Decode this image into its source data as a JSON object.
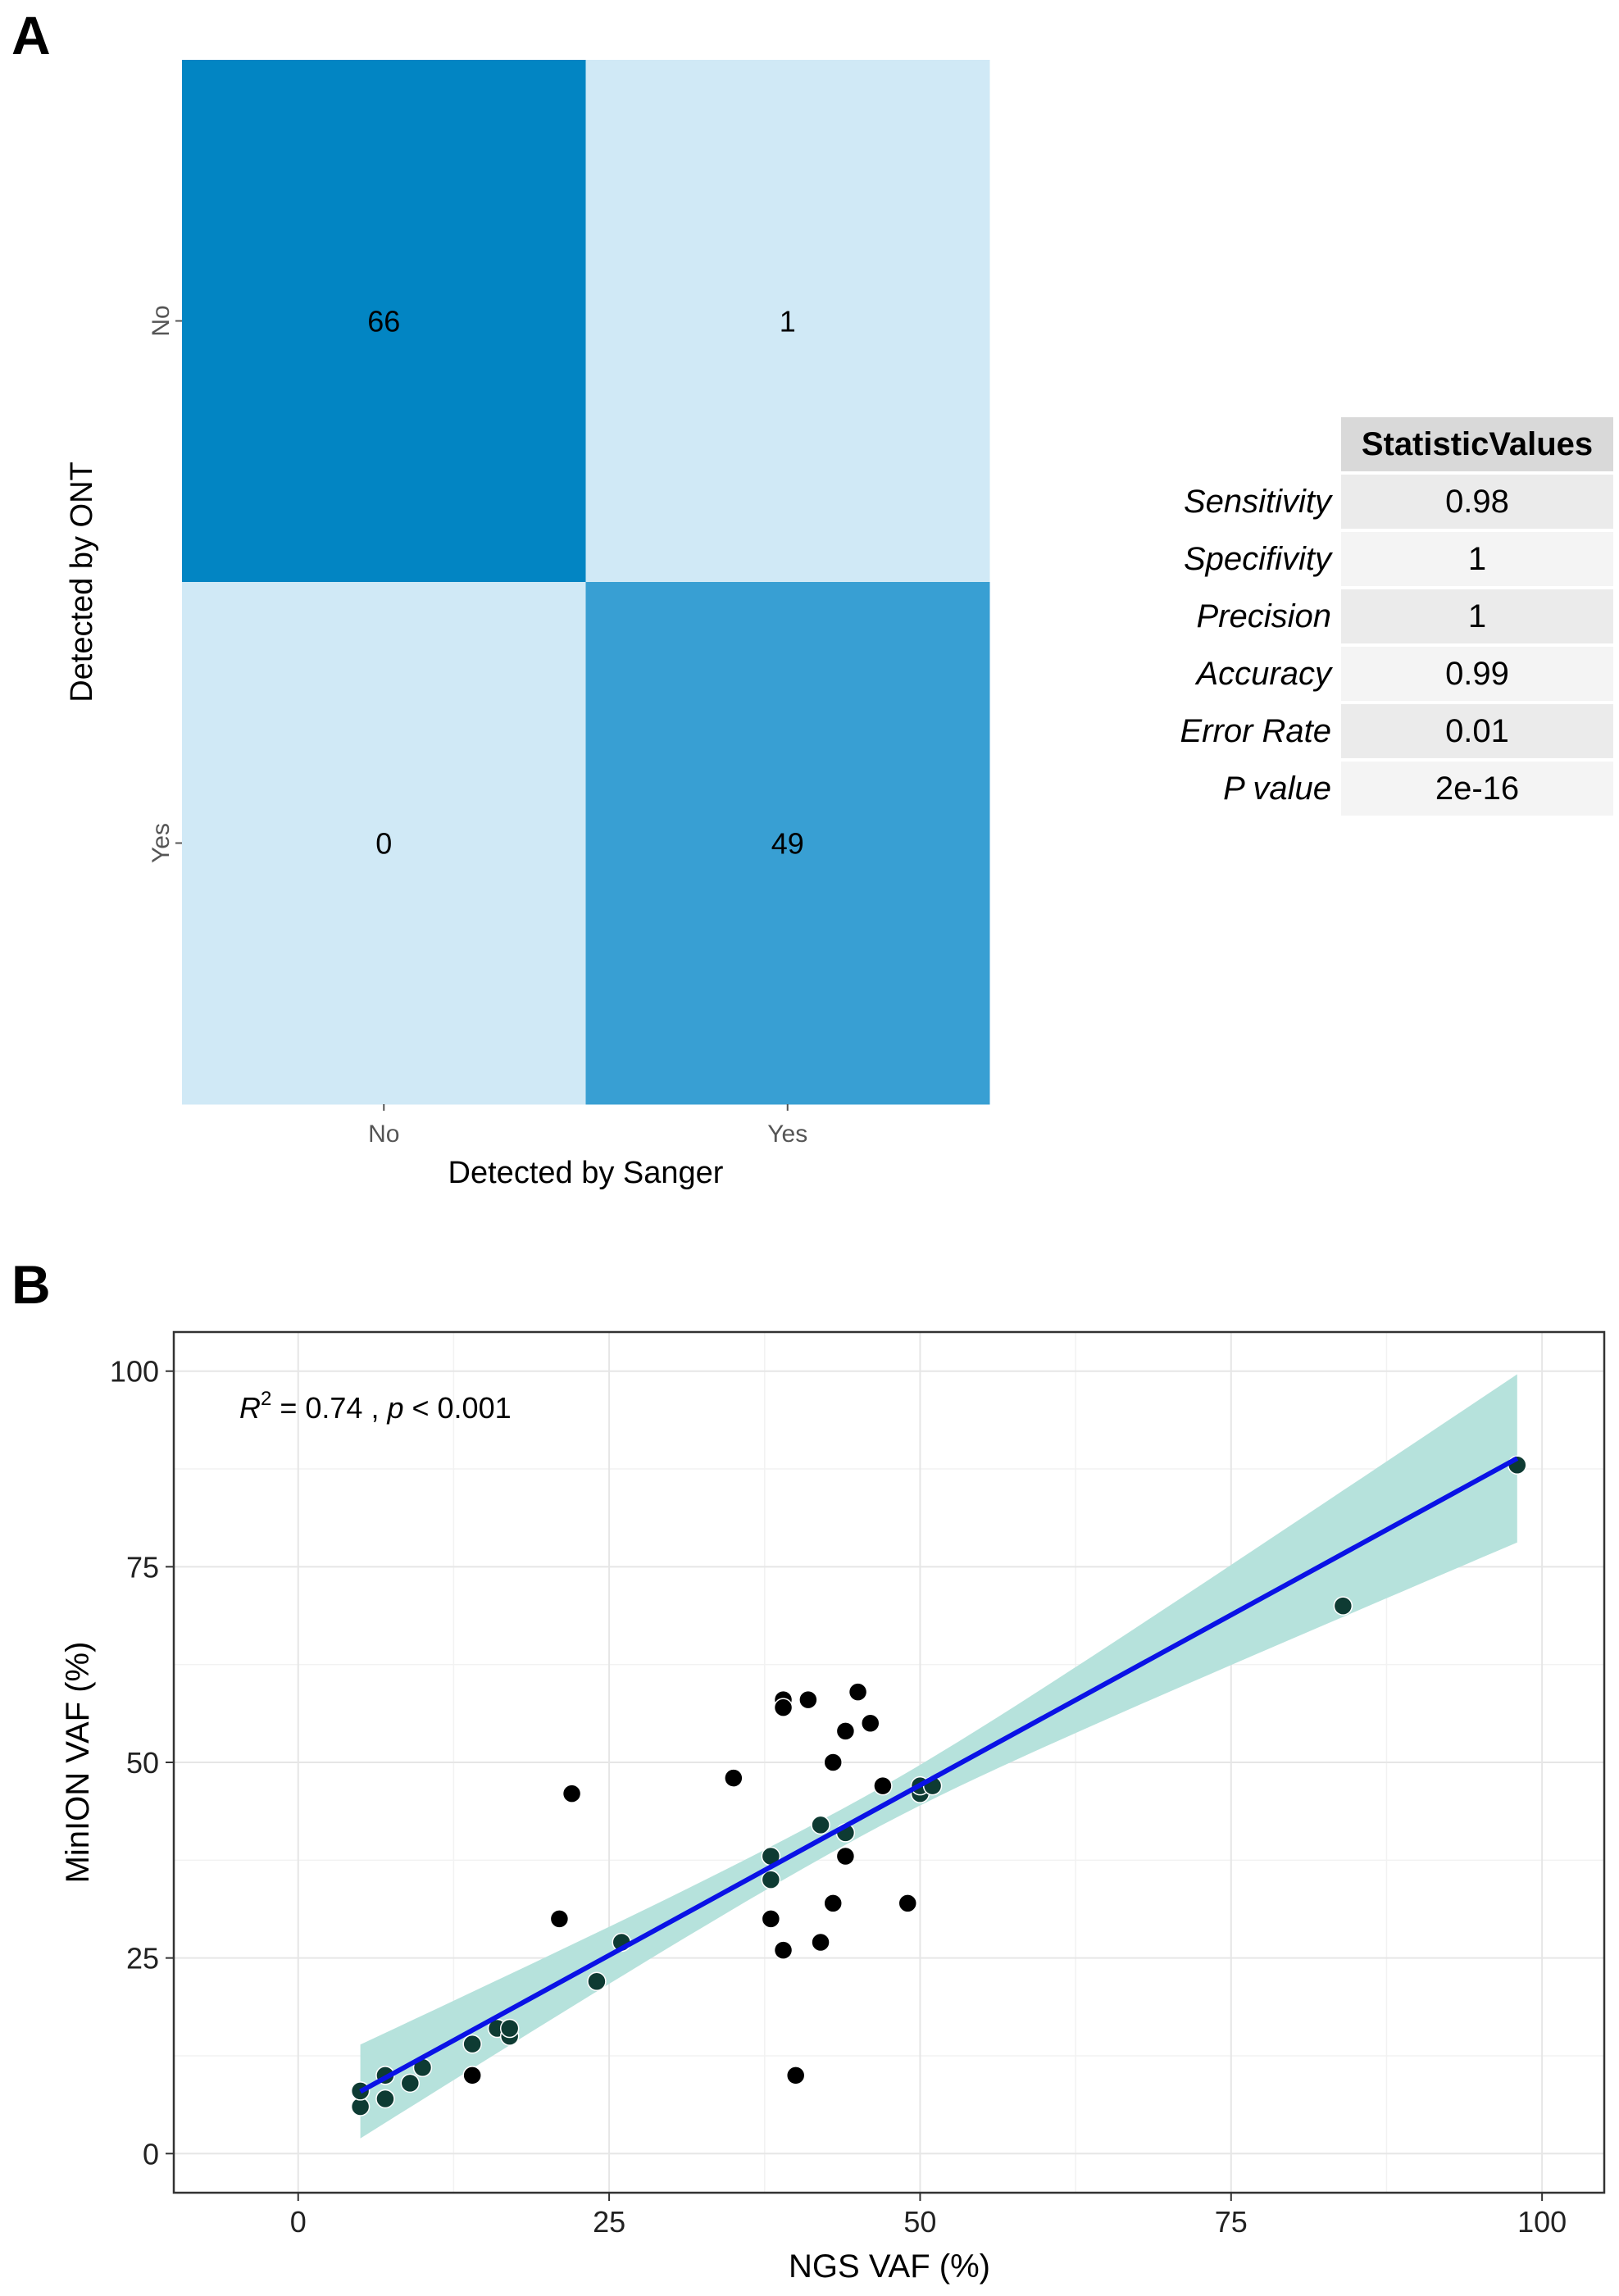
{
  "panel_labels": {
    "a": "A",
    "b": "B"
  },
  "colors": {
    "heat_high": "#0285c3",
    "heat_mid": "#389fd3",
    "heat_low": "#d0e9f6",
    "band": "#b6e2dc",
    "fit_line": "#0a12e6",
    "point_black": "#000000",
    "point_teal": "#0e3b33",
    "grid": "#e6e6e6"
  },
  "chart_data": [
    {
      "type": "heatmap",
      "title": "",
      "xlabel": "Detected by Sanger",
      "ylabel": "Detected by ONT",
      "x_categories": [
        "No",
        "Yes"
      ],
      "y_categories": [
        "No",
        "Yes"
      ],
      "cells": [
        {
          "x": "No",
          "y": "No",
          "value": 66,
          "label": "66"
        },
        {
          "x": "Yes",
          "y": "No",
          "value": 1,
          "label": "1"
        },
        {
          "x": "No",
          "y": "Yes",
          "value": 0,
          "label": "0"
        },
        {
          "x": "Yes",
          "y": "Yes",
          "value": 49,
          "label": "49"
        }
      ],
      "legend": "none"
    },
    {
      "type": "table",
      "header": [
        "",
        "StatisticValues"
      ],
      "rows": [
        {
          "label": "Sensitivity",
          "value": "0.98"
        },
        {
          "label": "Specifivity",
          "value": "1"
        },
        {
          "label": "Precision",
          "value": "1"
        },
        {
          "label": "Accuracy",
          "value": "0.99"
        },
        {
          "label": "Error Rate",
          "value": "0.01"
        },
        {
          "label": "P value",
          "value": "2e-16"
        }
      ]
    },
    {
      "type": "scatter",
      "title": "",
      "xlabel": "NGS VAF (%)",
      "ylabel": "MinION VAF (%)",
      "xlim": [
        -10,
        105
      ],
      "ylim": [
        -5,
        105
      ],
      "x_ticks": [
        0,
        25,
        50,
        75,
        100
      ],
      "y_ticks": [
        0,
        25,
        50,
        75,
        100
      ],
      "grid": true,
      "annotation": {
        "r_label": "R",
        "r_sup": "2",
        "r_value": " = 0.74 , ",
        "p_label": "p",
        "p_value": " < 0.001"
      },
      "fit": {
        "type": "linear",
        "x_range": [
          5,
          98
        ],
        "intercept": 3.59,
        "slope": 0.87,
        "band_lower_at_start": 3,
        "band_upper_at_start": 15,
        "band_lower_at_end": 78.5,
        "band_upper_at_end": 100
      },
      "points": [
        {
          "x": 5,
          "y": 6
        },
        {
          "x": 5,
          "y": 8
        },
        {
          "x": 7,
          "y": 7
        },
        {
          "x": 7,
          "y": 10
        },
        {
          "x": 9,
          "y": 9
        },
        {
          "x": 10,
          "y": 11
        },
        {
          "x": 14,
          "y": 10
        },
        {
          "x": 14,
          "y": 14
        },
        {
          "x": 16,
          "y": 16
        },
        {
          "x": 17,
          "y": 15
        },
        {
          "x": 17,
          "y": 16
        },
        {
          "x": 21,
          "y": 30
        },
        {
          "x": 22,
          "y": 46
        },
        {
          "x": 24,
          "y": 22
        },
        {
          "x": 26,
          "y": 27
        },
        {
          "x": 35,
          "y": 48
        },
        {
          "x": 38,
          "y": 38
        },
        {
          "x": 38,
          "y": 35
        },
        {
          "x": 38,
          "y": 30
        },
        {
          "x": 39,
          "y": 58
        },
        {
          "x": 39,
          "y": 57
        },
        {
          "x": 39,
          "y": 26
        },
        {
          "x": 40,
          "y": 10
        },
        {
          "x": 41,
          "y": 58
        },
        {
          "x": 42,
          "y": 42
        },
        {
          "x": 42,
          "y": 27
        },
        {
          "x": 43,
          "y": 50
        },
        {
          "x": 43,
          "y": 32
        },
        {
          "x": 44,
          "y": 54
        },
        {
          "x": 44,
          "y": 41
        },
        {
          "x": 44,
          "y": 38
        },
        {
          "x": 45,
          "y": 59
        },
        {
          "x": 46,
          "y": 55
        },
        {
          "x": 47,
          "y": 47
        },
        {
          "x": 49,
          "y": 32
        },
        {
          "x": 50,
          "y": 46
        },
        {
          "x": 50,
          "y": 47
        },
        {
          "x": 51,
          "y": 47
        },
        {
          "x": 84,
          "y": 70
        },
        {
          "x": 98,
          "y": 88
        }
      ]
    }
  ]
}
